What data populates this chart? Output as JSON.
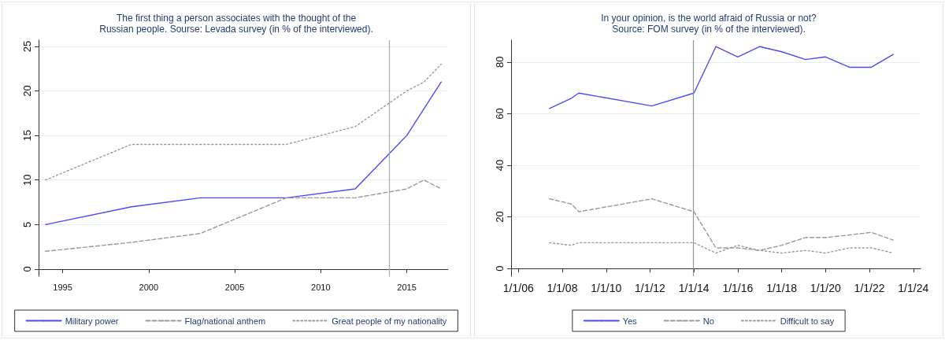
{
  "chart_data": [
    {
      "type": "line",
      "title": "The first thing a person associates with the thought of the\nRussian people. Sourse: Levada survey (in % of the interviewed).",
      "x": [
        1994,
        1999,
        2003,
        2008,
        2012,
        2015,
        2017
      ],
      "series": [
        {
          "name": "Military power",
          "color": "#4b4bf5",
          "line_style": "solid",
          "values": [
            5,
            7,
            8,
            8,
            9,
            15,
            21
          ]
        },
        {
          "name": "Flag/national anthem",
          "color": "#999999",
          "line_style": "dashed",
          "x": [
            1994,
            1999,
            2003,
            2008,
            2012,
            2015,
            2016,
            2017
          ],
          "values": [
            2,
            3,
            4,
            8,
            8,
            9,
            10,
            9
          ]
        },
        {
          "name": "Great people of my nationality",
          "color": "#999999",
          "line_style": "dotted",
          "x": [
            1994,
            1999,
            2003,
            2008,
            2012,
            2015,
            2016,
            2017
          ],
          "values": [
            10,
            14,
            14,
            14,
            16,
            20,
            21,
            23
          ]
        }
      ],
      "xlim": [
        1993.6,
        2017.4
      ],
      "xticks": [
        1995,
        2000,
        2005,
        2010,
        2015
      ],
      "ylim": [
        -0.8,
        25.7
      ],
      "yticks": [
        0,
        5,
        10,
        15,
        20,
        25
      ],
      "ref_lines": [
        {
          "axis": "x",
          "value": 2014,
          "label": null,
          "color": "#a0b0b0"
        }
      ],
      "grid": "y",
      "legend": "bottom",
      "marker": "none"
    },
    {
      "type": "line",
      "title": "In your opinion, is the world afraid of Russia or not?\nSource: FOM survey (in % of the interviewed).",
      "x": [
        "2007-06",
        "2008-06",
        "2008-10",
        "2012-02",
        "2014-01",
        "2015-01",
        "2016-01",
        "2017-01",
        "2018-01",
        "2019-02",
        "2020-01",
        "2021-02",
        "2022-02",
        "2023-02"
      ],
      "series": [
        {
          "name": "Yes",
          "color": "#4b4bf5",
          "line_style": "solid",
          "values": [
            62,
            66,
            68,
            63,
            68,
            86,
            82,
            86,
            84,
            81,
            82,
            78,
            78,
            83
          ]
        },
        {
          "name": "No",
          "color": "#999999",
          "line_style": "dashed",
          "values": [
            27,
            25,
            22,
            27,
            22,
            8,
            8,
            7,
            9,
            12,
            12,
            13,
            14,
            11
          ]
        },
        {
          "name": "Difficult to say",
          "color": "#999999",
          "line_style": "dotted",
          "values": [
            10,
            9,
            10,
            10,
            10,
            6,
            9,
            7,
            6,
            7,
            6,
            8,
            8,
            6
          ]
        }
      ],
      "xlim": [
        "2005-09",
        "2024-05"
      ],
      "xticks": [
        {
          "value": "2006-01-01",
          "label": "1/1/06"
        },
        {
          "value": "2008-01-01",
          "label": "1/1/08"
        },
        {
          "value": "2010-01-01",
          "label": "1/1/10"
        },
        {
          "value": "2012-01-01",
          "label": "1/1/12"
        },
        {
          "value": "2014-01-01",
          "label": "1/1/14"
        },
        {
          "value": "2016-01-01",
          "label": "1/1/16"
        },
        {
          "value": "2018-01-01",
          "label": "1/1/18"
        },
        {
          "value": "2020-01-01",
          "label": "1/1/20"
        },
        {
          "value": "2022-01-01",
          "label": "1/1/22"
        },
        {
          "value": "2024-01-01",
          "label": "1/1/24"
        }
      ],
      "ylim": [
        -3,
        88.5
      ],
      "yticks": [
        0,
        20,
        40,
        60,
        80
      ],
      "ref_lines": [
        {
          "axis": "x",
          "value": "2013-12-15",
          "label": null,
          "color": "#8a9a9a"
        }
      ],
      "grid": "y",
      "legend": "bottom",
      "marker": "none"
    }
  ]
}
